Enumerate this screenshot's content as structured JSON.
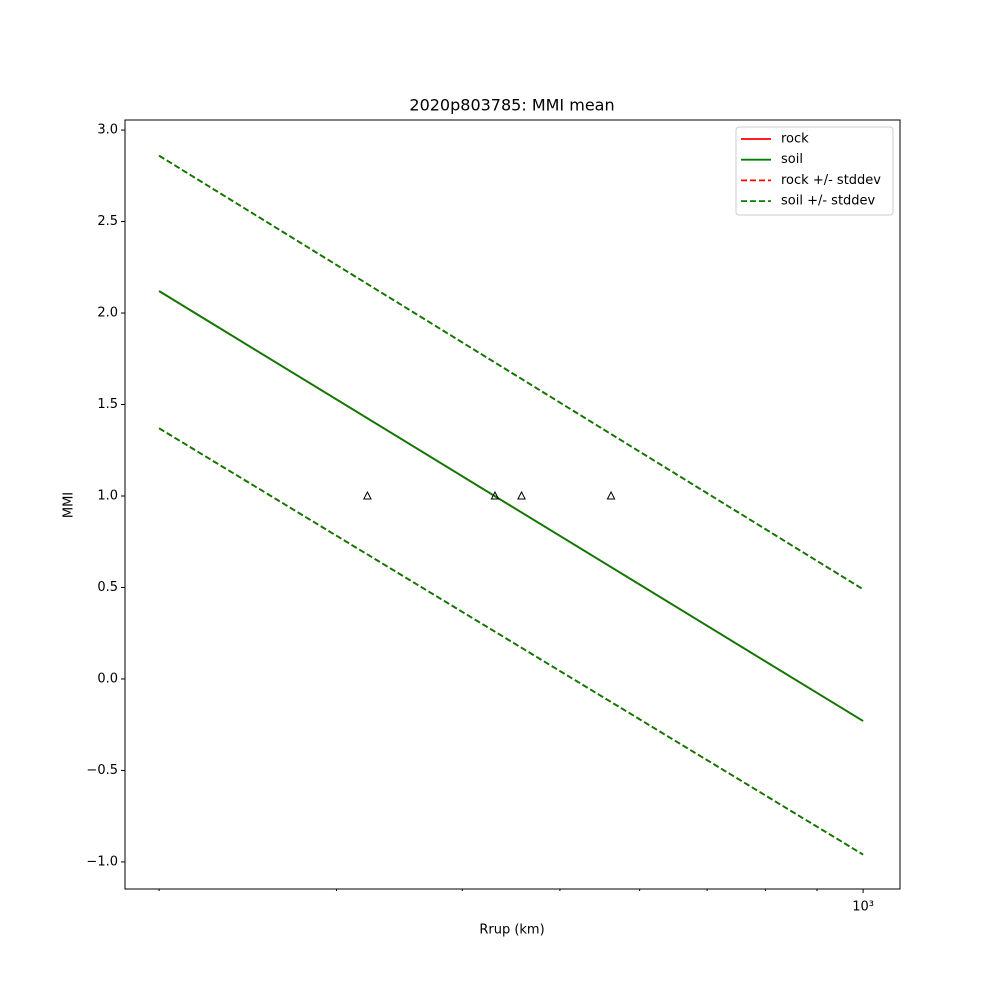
{
  "chart_data": {
    "type": "line",
    "title": "2020p803785: MMI mean",
    "x_label": "Rrup (km)",
    "y_label": "MMI",
    "xscale": "log",
    "xlim": [
      185,
      1088
    ],
    "ylim": [
      -1.148,
      3.055
    ],
    "xticks": [
      {
        "value": 1000,
        "label": "10³"
      }
    ],
    "xminorticks": [
      200,
      300,
      400,
      500,
      600,
      700,
      800,
      900
    ],
    "yticks": [
      {
        "value": -1,
        "label": "−1.0"
      },
      {
        "value": -0.5,
        "label": "−0.5"
      },
      {
        "value": 0,
        "label": "0.0"
      },
      {
        "value": 0.5,
        "label": "0.5"
      },
      {
        "value": 1,
        "label": "1.0"
      },
      {
        "value": 1.5,
        "label": "1.5"
      },
      {
        "value": 2,
        "label": "2.0"
      },
      {
        "value": 2.5,
        "label": "2.5"
      },
      {
        "value": 3,
        "label": "3.0"
      }
    ],
    "legend": "upper right",
    "series": [
      {
        "name": "rock",
        "color": "#ff0000",
        "style": "solid",
        "x": [
          200,
          1000
        ],
        "values": [
          2.12,
          -0.23
        ]
      },
      {
        "name": "soil",
        "color": "#007f00",
        "style": "solid",
        "x": [
          200,
          1000
        ],
        "values": [
          2.12,
          -0.23
        ]
      },
      {
        "name": "rock +/- stddev",
        "color": "#ff0000",
        "style": "dashed",
        "x": [
          200,
          1000
        ],
        "upper": [
          2.86,
          0.49
        ],
        "lower": [
          1.37,
          -0.96
        ]
      },
      {
        "name": "soil +/- stddev",
        "color": "#007f00",
        "style": "dashed",
        "x": [
          200,
          1000
        ],
        "upper": [
          2.86,
          0.49
        ],
        "lower": [
          1.37,
          -0.96
        ]
      }
    ],
    "markers": {
      "x": [
        322,
        431,
        458,
        562
      ],
      "y": [
        1,
        1,
        1,
        1
      ],
      "color": "#000000"
    }
  }
}
